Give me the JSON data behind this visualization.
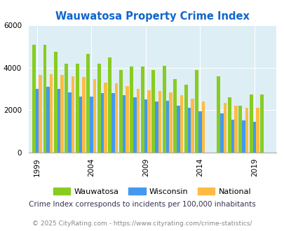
{
  "title": "Wauwatosa Property Crime Index",
  "years": [
    1999,
    2000,
    2001,
    2002,
    2003,
    2004,
    2005,
    2006,
    2007,
    2008,
    2009,
    2010,
    2011,
    2012,
    2013,
    2014,
    2016,
    2017,
    2018,
    2019,
    2020
  ],
  "wauwatosa": [
    5100,
    5100,
    4750,
    4200,
    4200,
    4650,
    4200,
    4500,
    3900,
    4050,
    4050,
    3900,
    4100,
    3450,
    3200,
    3900,
    3600,
    2600,
    2200,
    2750,
    2750
  ],
  "wisconsin": [
    3000,
    3100,
    3000,
    2850,
    2650,
    2650,
    2800,
    2800,
    2700,
    2600,
    2500,
    2400,
    2450,
    2200,
    2100,
    1950,
    1850,
    1550,
    1500,
    1450,
    0
  ],
  "national": [
    3650,
    3700,
    3650,
    3600,
    3550,
    3450,
    3300,
    3250,
    3150,
    3000,
    2950,
    2900,
    2850,
    2700,
    2550,
    2400,
    2350,
    2200,
    2100,
    2100,
    0
  ],
  "bar_colors": [
    "#88cc22",
    "#4499ee",
    "#ffbb44"
  ],
  "bg_color": "#ddeef5",
  "title_color": "#1166cc",
  "legend_labels": [
    "Wauwatosa",
    "Wisconsin",
    "National"
  ],
  "subtitle": "Crime Index corresponds to incidents per 100,000 inhabitants",
  "footer": "© 2025 CityRating.com - https://www.cityrating.com/crime-statistics/",
  "ylim": [
    0,
    6000
  ],
  "xlabel_ticks": [
    1999,
    2004,
    2009,
    2014,
    2019
  ]
}
